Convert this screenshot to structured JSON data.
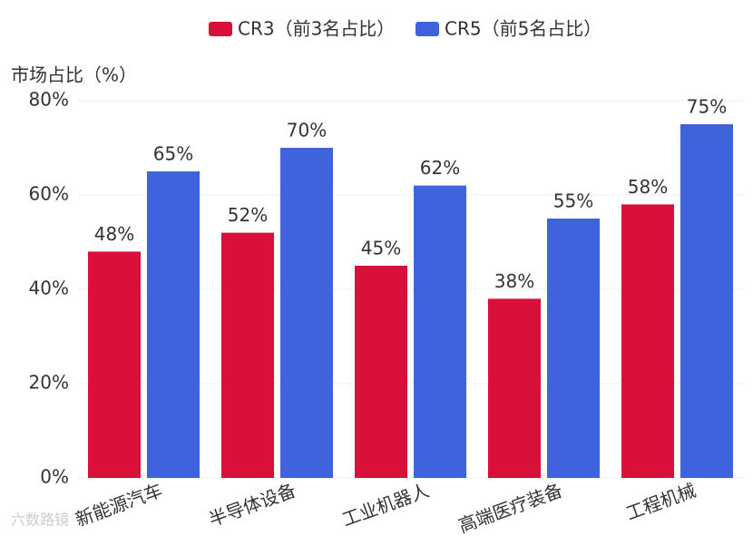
{
  "chart_data": {
    "type": "bar",
    "y_label": "市场占比（%）",
    "categories": [
      "新能源汽车",
      "半导体设备",
      "工业机器人",
      "高端医疗装备",
      "工程机械"
    ],
    "series": [
      {
        "name": "CR3（前3名占比）",
        "color": "#d9103a",
        "values": [
          48,
          52,
          45,
          38,
          58
        ],
        "value_labels": [
          "48%",
          "52%",
          "45%",
          "38%",
          "58%"
        ]
      },
      {
        "name": "CR5（前5名占比）",
        "color": "#3f63dc",
        "values": [
          65,
          70,
          62,
          55,
          75
        ],
        "value_labels": [
          "65%",
          "70%",
          "62%",
          "55%",
          "75%"
        ]
      }
    ],
    "ylim": [
      0,
      80
    ],
    "yticks": [
      {
        "value": 0,
        "label": "0%"
      },
      {
        "value": 20,
        "label": "20%"
      },
      {
        "value": 40,
        "label": "40%"
      },
      {
        "value": 60,
        "label": "60%"
      },
      {
        "value": 80,
        "label": "80%"
      }
    ],
    "grid": true,
    "legend": "top",
    "watermark": "六数路镜"
  }
}
